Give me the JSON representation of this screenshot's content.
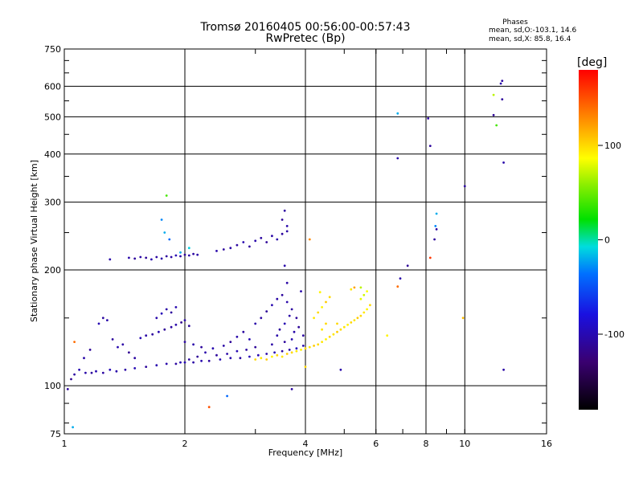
{
  "header": {
    "title_line1": "Tromsø 20160405 00:56:00-00:57:43",
    "title_line2": "RwPretec (Bp)"
  },
  "phase_box": {
    "heading": "Phases",
    "o_stats": "mean, sd,O:-103.1, 14.6",
    "x_stats": "mean, sd,X:  85.8, 16.4"
  },
  "chart_data": {
    "type": "scatter",
    "title": "Tromsø 20160405 00:56:00-00:57:43",
    "subtitle": "RwPretec (Bp)",
    "xlabel": "Frequency [MHz]",
    "ylabel": "Stationary phase Virtual Height [km]",
    "x_scale": "log",
    "y_scale": "log",
    "xlim": [
      1,
      16
    ],
    "ylim": [
      75,
      750
    ],
    "x_ticks": [
      1,
      2,
      4,
      6,
      8,
      10,
      16
    ],
    "y_ticks": [
      75,
      100,
      200,
      300,
      400,
      500,
      600,
      750
    ],
    "grid": true,
    "colorbar": {
      "label": "[deg]",
      "range": [
        -180,
        180
      ],
      "ticks": [
        100,
        0,
        -100
      ]
    },
    "series": [
      {
        "name": "O",
        "points": [
          [
            1.02,
            98,
            -110
          ],
          [
            1.04,
            104,
            -115
          ],
          [
            1.06,
            107,
            -108
          ],
          [
            1.09,
            110,
            -100
          ],
          [
            1.13,
            108,
            -105
          ],
          [
            1.17,
            108,
            -110
          ],
          [
            1.2,
            109,
            -102
          ],
          [
            1.25,
            108,
            -108
          ],
          [
            1.3,
            110,
            -98
          ],
          [
            1.35,
            109,
            -104
          ],
          [
            1.42,
            110,
            -106
          ],
          [
            1.5,
            111,
            -100
          ],
          [
            1.6,
            112,
            -110
          ],
          [
            1.7,
            113,
            -102
          ],
          [
            1.8,
            114,
            -104
          ],
          [
            1.9,
            114,
            -108
          ],
          [
            2.0,
            115,
            -100
          ],
          [
            2.1,
            115,
            -106
          ],
          [
            2.2,
            116,
            -102
          ],
          [
            2.3,
            116,
            -110
          ],
          [
            2.45,
            117,
            -100
          ],
          [
            2.6,
            118,
            -104
          ],
          [
            2.75,
            118,
            -108
          ],
          [
            2.9,
            119,
            -98
          ],
          [
            3.05,
            120,
            -102
          ],
          [
            3.2,
            121,
            -106
          ],
          [
            3.35,
            122,
            -100
          ],
          [
            3.5,
            123,
            -108
          ],
          [
            3.65,
            124,
            -104
          ],
          [
            3.8,
            125,
            -98
          ],
          [
            3.95,
            127,
            -102
          ],
          [
            1.12,
            118,
            -105
          ],
          [
            1.16,
            124,
            -112
          ],
          [
            1.22,
            145,
            -100
          ],
          [
            1.25,
            150,
            -108
          ],
          [
            1.28,
            148,
            -104
          ],
          [
            1.32,
            132,
            -110
          ],
          [
            1.36,
            126,
            -102
          ],
          [
            1.4,
            128,
            -106
          ],
          [
            1.45,
            122,
            -115
          ],
          [
            1.5,
            118,
            -108
          ],
          [
            1.55,
            133,
            -100
          ],
          [
            1.6,
            135,
            -106
          ],
          [
            1.66,
            136,
            -110
          ],
          [
            1.72,
            138,
            -102
          ],
          [
            1.78,
            140,
            -112
          ],
          [
            1.85,
            142,
            -108
          ],
          [
            1.9,
            144,
            -104
          ],
          [
            1.96,
            146,
            -116
          ],
          [
            2.0,
            148,
            -106
          ],
          [
            2.05,
            143,
            -110
          ],
          [
            1.7,
            150,
            -104
          ],
          [
            1.75,
            154,
            -98
          ],
          [
            1.8,
            158,
            -106
          ],
          [
            1.85,
            155,
            -110
          ],
          [
            1.9,
            160,
            -102
          ],
          [
            2.0,
            130,
            -108
          ],
          [
            2.1,
            128,
            -104
          ],
          [
            2.2,
            126,
            -110
          ],
          [
            2.35,
            125,
            -102
          ],
          [
            2.5,
            127,
            -106
          ],
          [
            2.6,
            130,
            -112
          ],
          [
            2.7,
            134,
            -104
          ],
          [
            2.8,
            138,
            -108
          ],
          [
            2.9,
            132,
            -100
          ],
          [
            3.0,
            145,
            -104
          ],
          [
            3.1,
            150,
            -108
          ],
          [
            3.2,
            156,
            -112
          ],
          [
            3.3,
            162,
            -102
          ],
          [
            3.4,
            168,
            -106
          ],
          [
            3.5,
            172,
            -110
          ],
          [
            3.6,
            165,
            -104
          ],
          [
            3.7,
            158,
            -108
          ],
          [
            3.8,
            150,
            -112
          ],
          [
            3.9,
            176,
            -104
          ],
          [
            3.45,
            140,
            -110
          ],
          [
            3.55,
            145,
            -100
          ],
          [
            3.65,
            152,
            -106
          ],
          [
            3.75,
            138,
            -104
          ],
          [
            3.85,
            142,
            -112
          ],
          [
            3.95,
            135,
            -108
          ],
          [
            1.95,
            115,
            -102
          ],
          [
            2.05,
            117,
            -108
          ],
          [
            2.15,
            119,
            -112
          ],
          [
            2.25,
            122,
            -104
          ],
          [
            2.4,
            120,
            -110
          ],
          [
            2.55,
            121,
            -106
          ],
          [
            2.7,
            123,
            -100
          ],
          [
            2.85,
            124,
            -108
          ],
          [
            3.0,
            126,
            -112
          ],
          [
            3.3,
            128,
            -106
          ],
          [
            3.4,
            135,
            -104
          ],
          [
            3.55,
            130,
            -110
          ],
          [
            3.7,
            132,
            -102
          ],
          [
            1.45,
            215,
            -104
          ],
          [
            1.5,
            214,
            -110
          ],
          [
            1.55,
            216,
            -106
          ],
          [
            1.6,
            215,
            -112
          ],
          [
            1.65,
            213,
            -102
          ],
          [
            1.7,
            216,
            -108
          ],
          [
            1.75,
            214,
            -104
          ],
          [
            1.8,
            217,
            -110
          ],
          [
            1.85,
            216,
            -106
          ],
          [
            1.9,
            218,
            -100
          ],
          [
            1.95,
            217,
            -108
          ],
          [
            2.0,
            219,
            -112
          ],
          [
            2.05,
            218,
            -104
          ],
          [
            2.1,
            220,
            -108
          ],
          [
            2.15,
            219,
            -106
          ],
          [
            2.4,
            224,
            -104
          ],
          [
            2.5,
            226,
            -110
          ],
          [
            2.6,
            228,
            -106
          ],
          [
            2.7,
            232,
            -108
          ],
          [
            2.8,
            236,
            -102
          ],
          [
            2.9,
            230,
            -110
          ],
          [
            3.0,
            238,
            -104
          ],
          [
            3.1,
            242,
            -108
          ],
          [
            3.2,
            236,
            -112
          ],
          [
            3.3,
            245,
            -106
          ],
          [
            3.4,
            240,
            -104
          ],
          [
            3.5,
            248,
            -110
          ],
          [
            3.6,
            252,
            -106
          ],
          [
            1.3,
            213,
            -104
          ],
          [
            3.55,
            285,
            -108
          ],
          [
            3.6,
            260,
            -104
          ],
          [
            3.5,
            270,
            -112
          ],
          [
            3.6,
            185,
            -106
          ],
          [
            3.55,
            205,
            -104
          ],
          [
            3.7,
            98,
            -108
          ],
          [
            4.9,
            110,
            -104
          ],
          [
            8.4,
            240,
            -110
          ],
          [
            8.5,
            255,
            -108
          ],
          [
            7.2,
            205,
            -112
          ],
          [
            6.9,
            190,
            -104
          ],
          [
            10.0,
            330,
            -108
          ],
          [
            12.5,
            380,
            -104
          ],
          [
            12.4,
            555,
            -110
          ],
          [
            12.3,
            610,
            -104
          ],
          [
            12.4,
            620,
            -108
          ],
          [
            8.2,
            420,
            -110
          ],
          [
            6.8,
            390,
            -104
          ],
          [
            8.1,
            495,
            -108
          ],
          [
            11.8,
            505,
            -112
          ],
          [
            12.5,
            110,
            -106
          ],
          [
            1.05,
            78,
            -20
          ],
          [
            1.75,
            270,
            -30
          ],
          [
            1.78,
            250,
            -20
          ],
          [
            1.83,
            240,
            -40
          ],
          [
            2.55,
            94,
            -40
          ],
          [
            6.8,
            510,
            -20
          ],
          [
            8.5,
            280,
            -20
          ],
          [
            8.45,
            260,
            -30
          ],
          [
            2.05,
            228,
            -10
          ],
          [
            1.95,
            222,
            -20
          ]
        ]
      },
      {
        "name": "X",
        "points": [
          [
            3.0,
            117,
            100
          ],
          [
            3.1,
            118,
            95
          ],
          [
            3.2,
            117,
            105
          ],
          [
            3.3,
            119,
            90
          ],
          [
            3.4,
            120,
            100
          ],
          [
            3.5,
            119,
            95
          ],
          [
            3.6,
            121,
            105
          ],
          [
            3.7,
            122,
            100
          ],
          [
            3.8,
            123,
            95
          ],
          [
            3.9,
            124,
            90
          ],
          [
            4.0,
            125,
            100
          ],
          [
            4.1,
            126,
            95
          ],
          [
            4.2,
            127,
            105
          ],
          [
            4.3,
            128,
            100
          ],
          [
            4.4,
            130,
            95
          ],
          [
            4.5,
            132,
            90
          ],
          [
            4.6,
            134,
            100
          ],
          [
            4.7,
            136,
            95
          ],
          [
            4.8,
            138,
            105
          ],
          [
            4.9,
            140,
            100
          ],
          [
            5.0,
            142,
            95
          ],
          [
            5.1,
            144,
            90
          ],
          [
            5.2,
            146,
            100
          ],
          [
            5.3,
            148,
            95
          ],
          [
            5.4,
            150,
            105
          ],
          [
            5.5,
            152,
            100
          ],
          [
            5.6,
            155,
            95
          ],
          [
            5.7,
            158,
            90
          ],
          [
            5.8,
            162,
            100
          ],
          [
            4.2,
            150,
            95
          ],
          [
            4.3,
            155,
            100
          ],
          [
            4.4,
            160,
            90
          ],
          [
            4.5,
            165,
            105
          ],
          [
            4.6,
            170,
            100
          ],
          [
            4.4,
            140,
            95
          ],
          [
            4.5,
            145,
            100
          ],
          [
            4.35,
            175,
            90
          ],
          [
            5.5,
            168,
            80
          ],
          [
            5.6,
            172,
            75
          ],
          [
            5.7,
            176,
            85
          ],
          [
            5.5,
            180,
            70
          ],
          [
            5.2,
            178,
            95
          ],
          [
            4.8,
            145,
            100
          ],
          [
            4.0,
            112,
            100
          ],
          [
            2.3,
            88,
            150
          ],
          [
            1.06,
            130,
            140
          ],
          [
            1.8,
            312,
            40
          ],
          [
            4.1,
            240,
            130
          ],
          [
            5.3,
            180,
            120
          ],
          [
            6.8,
            181,
            140
          ],
          [
            6.4,
            135,
            90
          ],
          [
            9.9,
            150,
            110
          ],
          [
            11.8,
            570,
            70
          ],
          [
            12.0,
            475,
            40
          ],
          [
            8.2,
            215,
            160
          ]
        ]
      }
    ]
  }
}
